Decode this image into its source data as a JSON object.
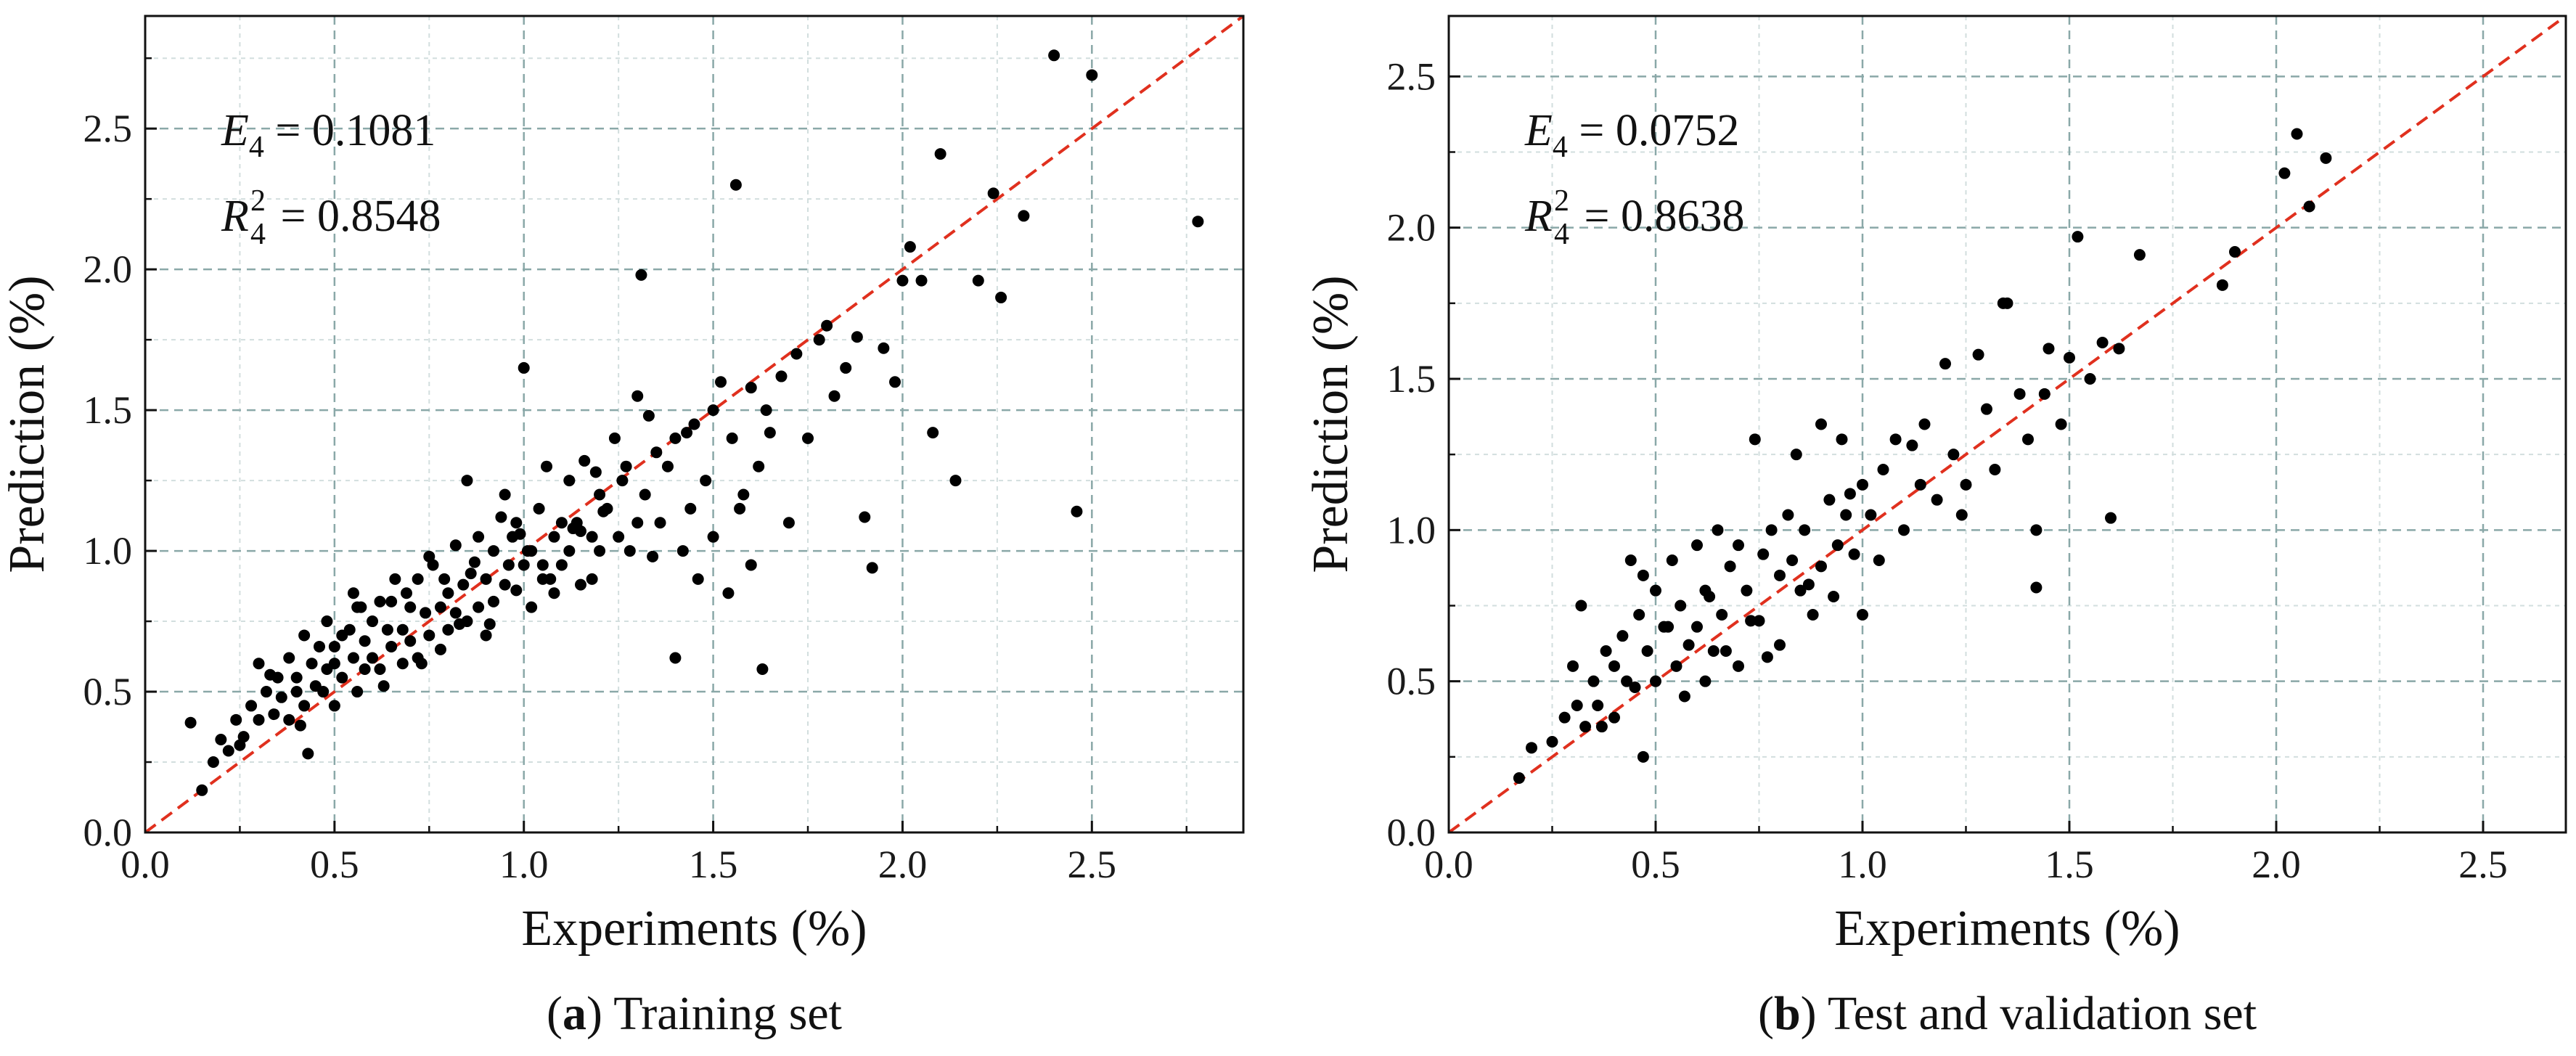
{
  "chart_data": [
    {
      "type": "scatter",
      "caption": {
        "open": "(",
        "letter": "a",
        "close": ") Training set"
      },
      "xlabel": "Experiments (%)",
      "ylabel": "Prediction (%)",
      "xlim": [
        0,
        2.9
      ],
      "ylim": [
        0,
        2.9
      ],
      "xticks": [
        0.0,
        0.5,
        1.0,
        1.5,
        2.0,
        2.5
      ],
      "yticks": [
        0.0,
        0.5,
        1.0,
        1.5,
        2.0,
        2.5
      ],
      "grid": true,
      "reference_line": "y = x",
      "colors": {
        "points": "#000000",
        "reference_line": "#e0301e",
        "grid_major": "#8aa8a8",
        "grid_minor": "#d2dede"
      },
      "annotations": [
        {
          "symbol": "E",
          "sub": "4",
          "sup": "",
          "value": " = 0.1081"
        },
        {
          "symbol": "R",
          "sub": "4",
          "sup": "2",
          "value": " = 0.8548"
        }
      ],
      "series": [
        {
          "x": [
            0.12,
            0.15,
            0.18,
            0.2,
            0.22,
            0.24,
            0.26,
            0.28,
            0.3,
            0.3,
            0.32,
            0.34,
            0.35,
            0.36,
            0.38,
            0.38,
            0.4,
            0.4,
            0.42,
            0.42,
            0.44,
            0.45,
            0.46,
            0.47,
            0.48,
            0.48,
            0.5,
            0.5,
            0.52,
            0.52,
            0.54,
            0.55,
            0.56,
            0.56,
            0.58,
            0.58,
            0.6,
            0.6,
            0.62,
            0.62,
            0.64,
            0.65,
            0.66,
            0.68,
            0.68,
            0.7,
            0.7,
            0.72,
            0.72,
            0.74,
            0.75,
            0.76,
            0.78,
            0.78,
            0.8,
            0.8,
            0.82,
            0.82,
            0.84,
            0.85,
            0.86,
            0.88,
            0.88,
            0.9,
            0.9,
            0.92,
            0.92,
            0.94,
            0.95,
            0.96,
            0.98,
            0.98,
            1.0,
            1.0,
            1.02,
            1.02,
            1.04,
            1.05,
            1.06,
            1.08,
            1.08,
            1.1,
            1.1,
            1.12,
            1.12,
            1.14,
            1.15,
            1.16,
            1.18,
            1.18,
            1.2,
            1.2,
            1.22,
            1.24,
            1.25,
            1.26,
            1.28,
            1.3,
            1.3,
            1.32,
            1.34,
            1.35,
            1.36,
            1.38,
            1.4,
            1.4,
            1.42,
            1.44,
            1.45,
            1.46,
            1.48,
            1.5,
            1.5,
            1.52,
            1.54,
            1.55,
            1.56,
            1.58,
            1.6,
            1.6,
            1.62,
            1.64,
            1.65,
            1.68,
            1.7,
            1.72,
            1.75,
            1.78,
            1.8,
            1.82,
            1.85,
            1.88,
            1.9,
            1.92,
            1.95,
            1.98,
            2.0,
            2.02,
            2.05,
            2.08,
            2.1,
            2.14,
            2.2,
            2.24,
            2.26,
            2.32,
            2.4,
            2.46,
            2.5,
            2.78,
            0.25,
            0.33,
            0.41,
            0.5,
            0.57,
            0.63,
            0.69,
            0.73,
            0.79,
            0.83,
            0.87,
            0.91,
            0.97,
            1.01,
            1.07,
            1.13,
            1.19,
            1.27,
            1.33,
            1.43,
            1.57,
            1.63,
            1.31,
            0.99,
            1.21,
            0.43,
            0.55,
            0.65,
            0.75,
            0.85,
            0.95,
            1.05,
            1.15
          ],
          "y": [
            0.39,
            0.15,
            0.25,
            0.33,
            0.29,
            0.4,
            0.34,
            0.45,
            0.4,
            0.6,
            0.5,
            0.42,
            0.55,
            0.48,
            0.62,
            0.4,
            0.55,
            0.5,
            0.7,
            0.45,
            0.6,
            0.52,
            0.66,
            0.5,
            0.75,
            0.58,
            0.6,
            0.45,
            0.7,
            0.55,
            0.72,
            0.62,
            0.8,
            0.5,
            0.68,
            0.58,
            0.75,
            0.62,
            0.82,
            0.58,
            0.72,
            0.66,
            0.9,
            0.72,
            0.6,
            0.8,
            0.68,
            0.9,
            0.62,
            0.78,
            0.7,
            0.95,
            0.8,
            0.65,
            0.85,
            0.72,
            1.02,
            0.78,
            0.88,
            0.75,
            0.92,
            1.05,
            0.8,
            0.9,
            0.7,
            1.0,
            0.82,
            1.12,
            0.88,
            0.95,
            1.1,
            0.86,
            1.65,
            0.95,
            1.0,
            0.8,
            1.15,
            0.9,
            1.3,
            1.05,
            0.85,
            1.1,
            0.95,
            1.25,
            1.0,
            1.1,
            0.88,
            1.32,
            1.05,
            0.9,
            1.2,
            1.0,
            1.15,
            1.4,
            1.05,
            1.25,
            1.0,
            1.55,
            1.1,
            1.2,
            0.98,
            1.35,
            1.1,
            1.3,
            1.4,
            0.62,
            1.0,
            1.15,
            1.45,
            0.9,
            1.25,
            1.5,
            1.05,
            1.6,
            0.85,
            1.4,
            2.3,
            1.2,
            1.58,
            0.95,
            1.3,
            1.5,
            1.42,
            1.62,
            1.1,
            1.7,
            1.4,
            1.75,
            1.8,
            1.55,
            1.65,
            1.76,
            1.12,
            0.94,
            1.72,
            1.6,
            1.96,
            2.08,
            1.96,
            1.42,
            2.41,
            1.25,
            1.96,
            2.27,
            1.9,
            2.19,
            2.76,
            1.14,
            2.69,
            2.17,
            0.31,
            0.56,
            0.38,
            0.66,
            0.8,
            0.52,
            0.85,
            0.6,
            0.9,
            0.74,
            0.96,
            0.74,
            1.05,
            1.0,
            0.9,
            1.08,
            1.28,
            1.3,
            1.48,
            1.42,
            1.15,
            0.58,
            1.98,
            1.06,
            1.14,
            0.28,
            0.85,
            0.82,
            0.98,
            1.25,
            1.2,
            0.95,
            1.07
          ]
        }
      ]
    },
    {
      "type": "scatter",
      "caption": {
        "open": "(",
        "letter": "b",
        "close": ") Test and validation set"
      },
      "xlabel": "Experiments (%)",
      "ylabel": "Prediction (%)",
      "xlim": [
        0,
        2.7
      ],
      "ylim": [
        0,
        2.7
      ],
      "xticks": [
        0.0,
        0.5,
        1.0,
        1.5,
        2.0,
        2.5
      ],
      "yticks": [
        0.0,
        0.5,
        1.0,
        1.5,
        2.0,
        2.5
      ],
      "grid": true,
      "reference_line": "y = x",
      "colors": {
        "points": "#000000",
        "reference_line": "#e0301e",
        "grid_major": "#8aa8a8",
        "grid_minor": "#d2dede"
      },
      "annotations": [
        {
          "symbol": "E",
          "sub": "4",
          "sup": "",
          "value": " = 0.0752"
        },
        {
          "symbol": "R",
          "sub": "4",
          "sup": "2",
          "value": " = 0.8638"
        }
      ],
      "series": [
        {
          "x": [
            0.17,
            0.2,
            0.25,
            0.28,
            0.3,
            0.32,
            0.33,
            0.35,
            0.36,
            0.38,
            0.4,
            0.4,
            0.42,
            0.44,
            0.45,
            0.46,
            0.48,
            0.5,
            0.5,
            0.52,
            0.54,
            0.55,
            0.56,
            0.58,
            0.6,
            0.6,
            0.62,
            0.64,
            0.65,
            0.66,
            0.68,
            0.7,
            0.7,
            0.72,
            0.74,
            0.75,
            0.76,
            0.78,
            0.8,
            0.8,
            0.82,
            0.84,
            0.85,
            0.86,
            0.88,
            0.9,
            0.9,
            0.92,
            0.94,
            0.95,
            0.96,
            0.98,
            1.0,
            1.0,
            1.02,
            1.05,
            1.08,
            1.1,
            1.12,
            1.15,
            1.18,
            1.2,
            1.22,
            1.25,
            1.28,
            1.3,
            1.32,
            1.35,
            1.38,
            1.4,
            1.42,
            1.45,
            1.48,
            1.5,
            1.52,
            1.55,
            1.58,
            1.6,
            1.62,
            1.67,
            1.87,
            1.9,
            2.02,
            2.05,
            2.08,
            2.12,
            0.31,
            0.37,
            0.43,
            0.47,
            0.53,
            0.57,
            0.63,
            0.67,
            0.73,
            0.77,
            0.83,
            0.87,
            0.93,
            0.97,
            1.04,
            1.14,
            1.24,
            1.34,
            1.44,
            1.42,
            0.47,
            0.62
          ],
          "y": [
            0.18,
            0.28,
            0.3,
            0.38,
            0.55,
            0.75,
            0.35,
            0.5,
            0.42,
            0.6,
            0.55,
            0.38,
            0.65,
            0.9,
            0.48,
            0.72,
            0.6,
            0.8,
            0.5,
            0.68,
            0.9,
            0.55,
            0.75,
            0.62,
            0.95,
            0.68,
            0.8,
            0.6,
            1.0,
            0.72,
            0.88,
            0.95,
            0.55,
            0.8,
            1.3,
            0.7,
            0.92,
            1.0,
            0.85,
            0.62,
            1.05,
            1.25,
            0.8,
            1.0,
            0.72,
            1.35,
            0.88,
            1.1,
            0.95,
            1.3,
            1.05,
            0.92,
            1.15,
            0.72,
            1.05,
            1.2,
            1.3,
            1.0,
            1.28,
            1.35,
            1.1,
            1.55,
            1.25,
            1.15,
            1.58,
            1.4,
            1.2,
            1.75,
            1.45,
            1.3,
            0.81,
            1.6,
            1.35,
            1.57,
            1.97,
            1.5,
            1.62,
            1.04,
            1.6,
            1.91,
            1.81,
            1.92,
            2.18,
            2.31,
            2.07,
            2.23,
            0.42,
            0.35,
            0.5,
            0.25,
            0.68,
            0.45,
            0.78,
            0.6,
            0.7,
            0.58,
            0.9,
            0.82,
            0.78,
            1.12,
            0.9,
            1.15,
            1.05,
            1.75,
            1.45,
            1.0,
            0.85,
            0.5
          ]
        }
      ]
    }
  ]
}
